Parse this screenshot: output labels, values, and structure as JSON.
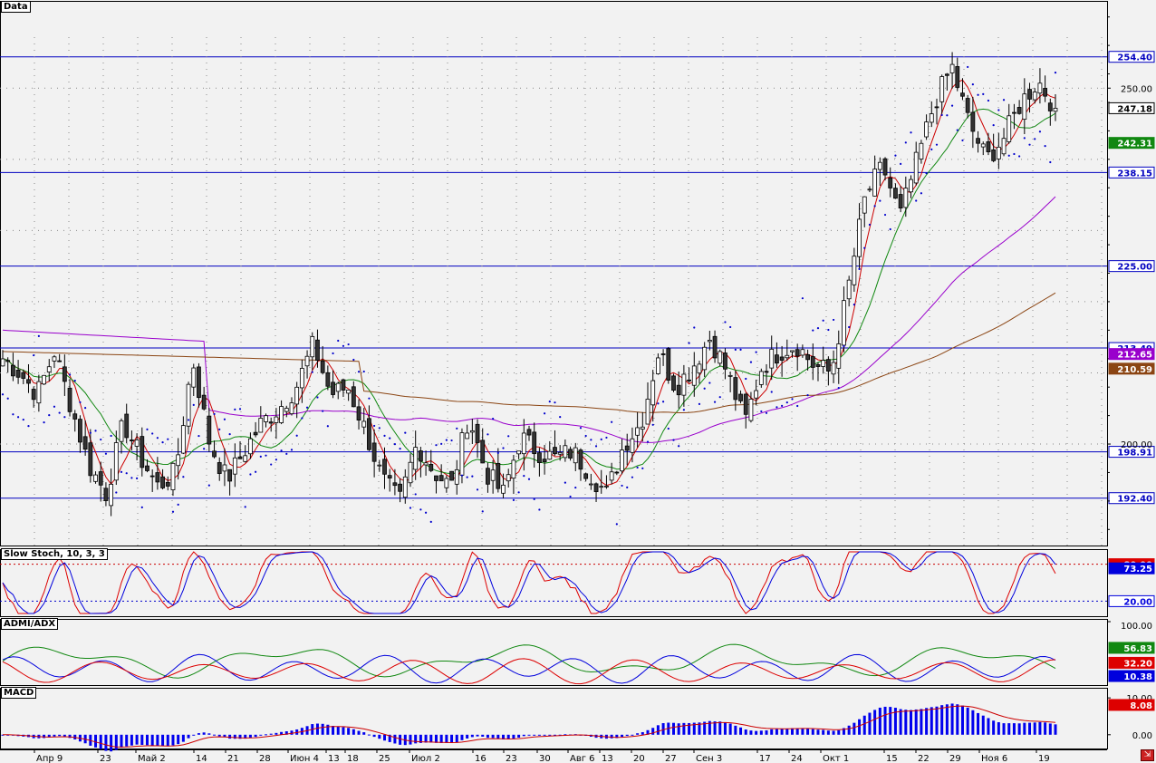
{
  "panels": {
    "main": {
      "label": "Data"
    },
    "stoch": {
      "label": "Slow Stoch, 10, 3, 3"
    },
    "adx": {
      "label": "ADMI/ADX"
    },
    "macd": {
      "label": "MACD"
    }
  },
  "colors": {
    "background": "#f2f2f2",
    "hline": "#0000c0",
    "candle_up": "#ffffff",
    "candle_down": "#333333",
    "ma_fast": "#cc0000",
    "ma_mid": "#118811",
    "ma_slow": "#9900cc",
    "ma_long": "#8b4513",
    "sar": "#0000cc",
    "stoch_k": "#dd0000",
    "stoch_d": "#0000dd",
    "adx": "#118811",
    "di_plus": "#0000dd",
    "di_minus": "#dd0000",
    "macd_hist": "#0000ee",
    "macd_signal": "#cc0000",
    "tag_price": "#000000",
    "tag_green": "#118811",
    "tag_brown": "#8b4513",
    "tag_red": "#dd0000",
    "tag_blue": "#0000dd"
  },
  "chart_data": [
    {
      "type": "candlestick",
      "title": "Data",
      "ylim": [
        186,
        262
      ],
      "y_ticks": [
        200,
        250
      ],
      "y_tick_labels": [
        "200.00",
        "250.00"
      ],
      "horizontal_lines": [
        254.4,
        238.15,
        225.0,
        213.49,
        198.91,
        192.4
      ],
      "horizontal_line_labels": [
        "254.40",
        "238.15",
        "225.00",
        "213.49",
        "198.91",
        "192.40"
      ],
      "value_tags": [
        {
          "label": "247.18",
          "value": 247.18,
          "kind": "price"
        },
        {
          "label": "242.31",
          "value": 242.31,
          "kind": "green"
        },
        {
          "label": "212.65",
          "value": 212.65,
          "kind": "purple"
        },
        {
          "label": "210.59",
          "value": 210.59,
          "kind": "brown"
        }
      ],
      "x_tick_labels": [
        "Апр 9",
        "23",
        "Май 2",
        "14",
        "21",
        "28",
        "Июн 4",
        "13",
        "18",
        "25",
        "Июл 2",
        "16",
        "23",
        "30",
        "Авг 6",
        "13",
        "20",
        "27",
        "Сен 3",
        "17",
        "24",
        "Окт 1",
        "15",
        "22",
        "29",
        "Ноя 6",
        "19"
      ],
      "series": [
        {
          "name": "Price",
          "ohlc_anchor_closes": [
            212,
            210,
            207,
            213,
            205,
            197,
            193,
            203,
            198,
            194,
            196,
            212,
            200,
            195,
            199,
            203,
            205,
            208,
            214,
            207,
            208,
            202,
            195,
            192,
            200,
            196,
            194,
            204,
            196,
            193,
            201,
            199,
            198,
            199,
            196,
            193,
            200,
            203,
            213,
            208,
            211,
            215,
            210,
            203,
            211,
            213,
            214,
            211,
            210,
            222,
            235,
            239,
            232,
            240,
            248,
            253,
            245,
            240,
            243,
            248,
            251,
            247.18
          ]
        }
      ]
    },
    {
      "type": "line",
      "title": "Slow Stoch, 10, 3, 3",
      "ylim": [
        0,
        100
      ],
      "levels": [
        80,
        20
      ],
      "value_tags": [
        {
          "label": "80.00",
          "value": 80
        },
        {
          "label": "73.25",
          "value": 73.25
        },
        {
          "label": "20.00",
          "value": 20
        }
      ]
    },
    {
      "type": "line",
      "title": "ADMI/ADX",
      "ylim": [
        0,
        100
      ],
      "y_tick_labels": [
        "100.00"
      ],
      "value_tags": [
        {
          "label": "56.83",
          "value": 56.83,
          "kind": "green"
        },
        {
          "label": "32.20",
          "value": 32.2,
          "kind": "red"
        },
        {
          "label": "10.38",
          "value": 10.38,
          "kind": "blue"
        }
      ]
    },
    {
      "type": "bar",
      "title": "MACD",
      "ylim": [
        -3,
        12
      ],
      "y_tick_labels": [
        "10.00",
        "0.00"
      ],
      "value_tags": [
        {
          "label": "8.08",
          "value": 8.08,
          "kind": "red"
        }
      ]
    }
  ]
}
